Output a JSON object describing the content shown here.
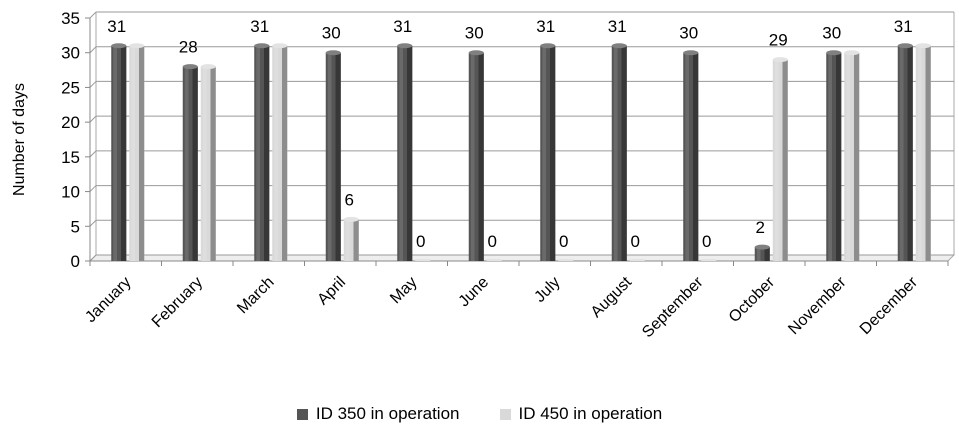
{
  "chart_data": {
    "type": "bar",
    "title": "",
    "xlabel": "",
    "ylabel": "Number of days",
    "ylim": [
      0,
      35
    ],
    "yticks": [
      0,
      5,
      10,
      15,
      20,
      25,
      30,
      35
    ],
    "grid": true,
    "legend_position": "bottom",
    "categories": [
      "January",
      "February",
      "March",
      "April",
      "May",
      "June",
      "July",
      "August",
      "September",
      "October",
      "November",
      "December"
    ],
    "series": [
      {
        "name": "ID 350 in operation",
        "color": "#555555",
        "values": [
          31,
          28,
          31,
          30,
          31,
          30,
          31,
          31,
          30,
          2,
          30,
          31
        ]
      },
      {
        "name": "ID 450 in operation",
        "color": "#d9d9d9",
        "values": [
          31,
          28,
          31,
          6,
          0,
          0,
          0,
          0,
          0,
          29,
          30,
          31
        ]
      }
    ],
    "data_labels": [
      "31",
      "28",
      "31",
      "30",
      "31",
      "30",
      "31",
      "31",
      "30",
      "2",
      "30",
      "31"
    ],
    "data_labels_450": [
      "",
      "",
      "",
      "6",
      "0",
      "0",
      "0",
      "0",
      "0",
      "29",
      "",
      ""
    ]
  }
}
